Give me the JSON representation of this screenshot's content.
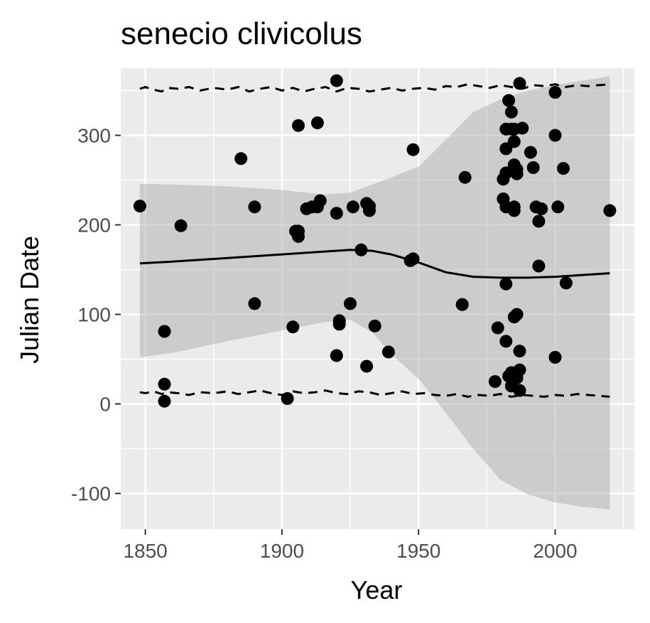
{
  "chart_data": {
    "type": "scatter",
    "title": "senecio clivicolus",
    "xlabel": "Year",
    "ylabel": "Julian Date",
    "xlim": [
      1841,
      2029
    ],
    "ylim": [
      -140,
      375
    ],
    "x_ticks": [
      1850,
      1900,
      1950,
      2000
    ],
    "x_tick_labels": [
      "1850",
      "1900",
      "1950",
      "2000"
    ],
    "y_ticks": [
      -100,
      0,
      100,
      200,
      300
    ],
    "y_tick_labels": [
      "-100",
      "0",
      "100",
      "200",
      "300"
    ],
    "grid": true,
    "legend": "none",
    "colors": {
      "panel": "#ebebeb",
      "grid": "#ffffff",
      "points": "#000000",
      "ribbon": "#b3b3b3",
      "line": "#000000",
      "tick_text": "#4d4d4d"
    },
    "points": [
      {
        "x": 1848,
        "y": 221
      },
      {
        "x": 1857,
        "y": 81
      },
      {
        "x": 1857,
        "y": 22
      },
      {
        "x": 1857,
        "y": 3
      },
      {
        "x": 1863,
        "y": 199
      },
      {
        "x": 1885,
        "y": 274
      },
      {
        "x": 1890,
        "y": 220
      },
      {
        "x": 1890,
        "y": 112
      },
      {
        "x": 1902,
        "y": 6
      },
      {
        "x": 1904,
        "y": 86
      },
      {
        "x": 1905,
        "y": 193
      },
      {
        "x": 1906,
        "y": 187
      },
      {
        "x": 1906,
        "y": 193
      },
      {
        "x": 1906,
        "y": 311
      },
      {
        "x": 1909,
        "y": 218
      },
      {
        "x": 1911,
        "y": 220
      },
      {
        "x": 1913,
        "y": 220
      },
      {
        "x": 1913,
        "y": 314
      },
      {
        "x": 1914,
        "y": 227
      },
      {
        "x": 1920,
        "y": 361
      },
      {
        "x": 1920,
        "y": 213
      },
      {
        "x": 1920,
        "y": 54
      },
      {
        "x": 1921,
        "y": 89
      },
      {
        "x": 1921,
        "y": 93
      },
      {
        "x": 1925,
        "y": 112
      },
      {
        "x": 1926,
        "y": 220
      },
      {
        "x": 1929,
        "y": 172
      },
      {
        "x": 1931,
        "y": 224
      },
      {
        "x": 1931,
        "y": 42
      },
      {
        "x": 1932,
        "y": 216
      },
      {
        "x": 1932,
        "y": 221
      },
      {
        "x": 1934,
        "y": 87
      },
      {
        "x": 1939,
        "y": 58
      },
      {
        "x": 1947,
        "y": 160
      },
      {
        "x": 1948,
        "y": 162
      },
      {
        "x": 1948,
        "y": 284
      },
      {
        "x": 1966,
        "y": 111
      },
      {
        "x": 1966,
        "y": 111
      },
      {
        "x": 1967,
        "y": 253
      },
      {
        "x": 1978,
        "y": 25
      },
      {
        "x": 1979,
        "y": 85
      },
      {
        "x": 1981,
        "y": 251
      },
      {
        "x": 1981,
        "y": 229
      },
      {
        "x": 1982,
        "y": 258
      },
      {
        "x": 1982,
        "y": 220
      },
      {
        "x": 1982,
        "y": 134
      },
      {
        "x": 1982,
        "y": 70
      },
      {
        "x": 1982,
        "y": 307
      },
      {
        "x": 1982,
        "y": 285
      },
      {
        "x": 1983,
        "y": 339
      },
      {
        "x": 1983,
        "y": 31
      },
      {
        "x": 1984,
        "y": 326
      },
      {
        "x": 1984,
        "y": 307
      },
      {
        "x": 1984,
        "y": 35
      },
      {
        "x": 1984,
        "y": 20
      },
      {
        "x": 1985,
        "y": 307
      },
      {
        "x": 1985,
        "y": 293
      },
      {
        "x": 1985,
        "y": 267
      },
      {
        "x": 1985,
        "y": 220
      },
      {
        "x": 1985,
        "y": 216
      },
      {
        "x": 1985,
        "y": 97
      },
      {
        "x": 1986,
        "y": 262
      },
      {
        "x": 1986,
        "y": 257
      },
      {
        "x": 1986,
        "y": 100
      },
      {
        "x": 1986,
        "y": 29
      },
      {
        "x": 1987,
        "y": 358
      },
      {
        "x": 1987,
        "y": 59
      },
      {
        "x": 1987,
        "y": 38
      },
      {
        "x": 1987,
        "y": 15
      },
      {
        "x": 1988,
        "y": 308
      },
      {
        "x": 1991,
        "y": 281
      },
      {
        "x": 1992,
        "y": 264
      },
      {
        "x": 1993,
        "y": 220
      },
      {
        "x": 1994,
        "y": 204
      },
      {
        "x": 1994,
        "y": 154
      },
      {
        "x": 1995,
        "y": 218
      },
      {
        "x": 2000,
        "y": 348
      },
      {
        "x": 2000,
        "y": 300
      },
      {
        "x": 2000,
        "y": 52
      },
      {
        "x": 2001,
        "y": 220
      },
      {
        "x": 2003,
        "y": 263
      },
      {
        "x": 2004,
        "y": 135
      },
      {
        "x": 2020,
        "y": 216
      }
    ],
    "smooth": {
      "x": [
        1848,
        1860,
        1880,
        1900,
        1915,
        1925,
        1933,
        1940,
        1950,
        1960,
        1970,
        1980,
        1990,
        2000,
        2010,
        2020
      ],
      "y": [
        157,
        159,
        163,
        167,
        170,
        172,
        171,
        167,
        158,
        147,
        142,
        141,
        141,
        142,
        144,
        146
      ],
      "upper": [
        246,
        245,
        243,
        239,
        234,
        236,
        245,
        253,
        265,
        295,
        326,
        340,
        350,
        356,
        361,
        366
      ],
      "lower": [
        52,
        57,
        70,
        82,
        91,
        94,
        80,
        56,
        28,
        -10,
        -50,
        -85,
        -101,
        -110,
        -115,
        -118
      ]
    },
    "quantile_lines": {
      "upper_x": [
        1848,
        1850,
        1853,
        1856,
        1858,
        1862,
        1866,
        1870,
        1875,
        1880,
        1884,
        1888,
        1892,
        1896,
        1900,
        1904,
        1908,
        1912,
        1916,
        1920,
        1924,
        1928,
        1932,
        1936,
        1940,
        1944,
        1948,
        1952,
        1956,
        1960,
        1964,
        1968,
        1972,
        1976,
        1980,
        1984,
        1988,
        1992,
        1996,
        2000,
        2004,
        2008,
        2012,
        2016,
        2020
      ],
      "upper_y": [
        352,
        354,
        351,
        349,
        353,
        352,
        354,
        350,
        353,
        351,
        354,
        349,
        352,
        354,
        350,
        353,
        349,
        352,
        354,
        349,
        353,
        352,
        349,
        351,
        353,
        350,
        352,
        353,
        351,
        355,
        354,
        357,
        355,
        353,
        356,
        354,
        352,
        356,
        355,
        357,
        354,
        356,
        355,
        356,
        357
      ],
      "lower_x": [
        1848,
        1850,
        1853,
        1856,
        1858,
        1862,
        1866,
        1870,
        1875,
        1880,
        1884,
        1888,
        1892,
        1896,
        1900,
        1904,
        1908,
        1912,
        1916,
        1920,
        1924,
        1928,
        1932,
        1936,
        1940,
        1944,
        1948,
        1952,
        1956,
        1960,
        1964,
        1968,
        1972,
        1976,
        1980,
        1984,
        1988,
        1992,
        1996,
        2000,
        2004,
        2008,
        2012,
        2016,
        2020
      ],
      "lower_y": [
        13,
        12,
        14,
        11,
        13,
        12,
        10,
        13,
        12,
        14,
        11,
        13,
        15,
        12,
        10,
        14,
        12,
        13,
        15,
        12,
        11,
        14,
        13,
        10,
        12,
        14,
        11,
        12,
        10,
        9,
        11,
        8,
        10,
        9,
        11,
        8,
        10,
        9,
        8,
        10,
        9,
        11,
        10,
        9,
        8
      ]
    }
  }
}
